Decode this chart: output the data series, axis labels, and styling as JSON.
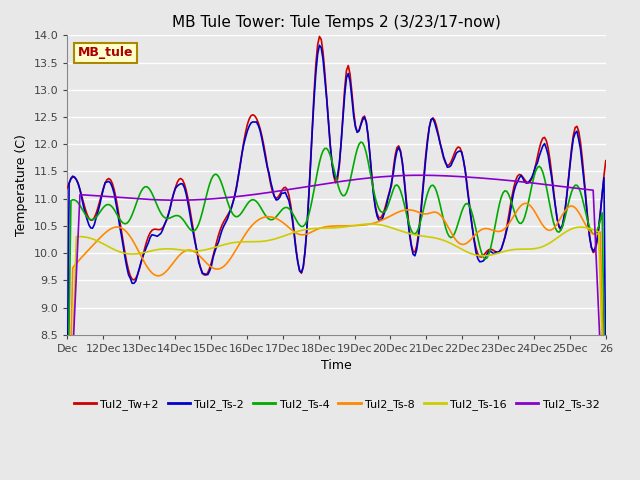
{
  "title": "MB Tule Tower: Tule Temps 2 (3/23/17-now)",
  "xlabel": "Time",
  "ylabel": "Temperature (C)",
  "ylim": [
    8.5,
    14.0
  ],
  "yticks": [
    8.5,
    9.0,
    9.5,
    10.0,
    10.5,
    11.0,
    11.5,
    12.0,
    12.5,
    13.0,
    13.5,
    14.0
  ],
  "xtick_labels": [
    "Dec",
    "12Dec",
    "13Dec",
    "14Dec",
    "15Dec",
    "16Dec",
    "17Dec",
    "18Dec",
    "19Dec",
    "20Dec",
    "21Dec",
    "22Dec",
    "23Dec",
    "24Dec",
    "25Dec",
    "26"
  ],
  "background_color": "#e8e8e8",
  "plot_bg_color": "#e8e8e8",
  "grid_color": "#ffffff",
  "series_colors": [
    "#cc0000",
    "#0000cc",
    "#00aa00",
    "#ff8800",
    "#cccc00",
    "#8800cc"
  ],
  "series_labels": [
    "Tul2_Tw+2",
    "Tul2_Ts-2",
    "Tul2_Ts-4",
    "Tul2_Ts-8",
    "Tul2_Ts-16",
    "Tul2_Ts-32"
  ],
  "legend_label": "MB_tule",
  "legend_label_color": "#aa0000",
  "legend_label_bg": "#ffffcc",
  "legend_label_border": "#aa8800"
}
